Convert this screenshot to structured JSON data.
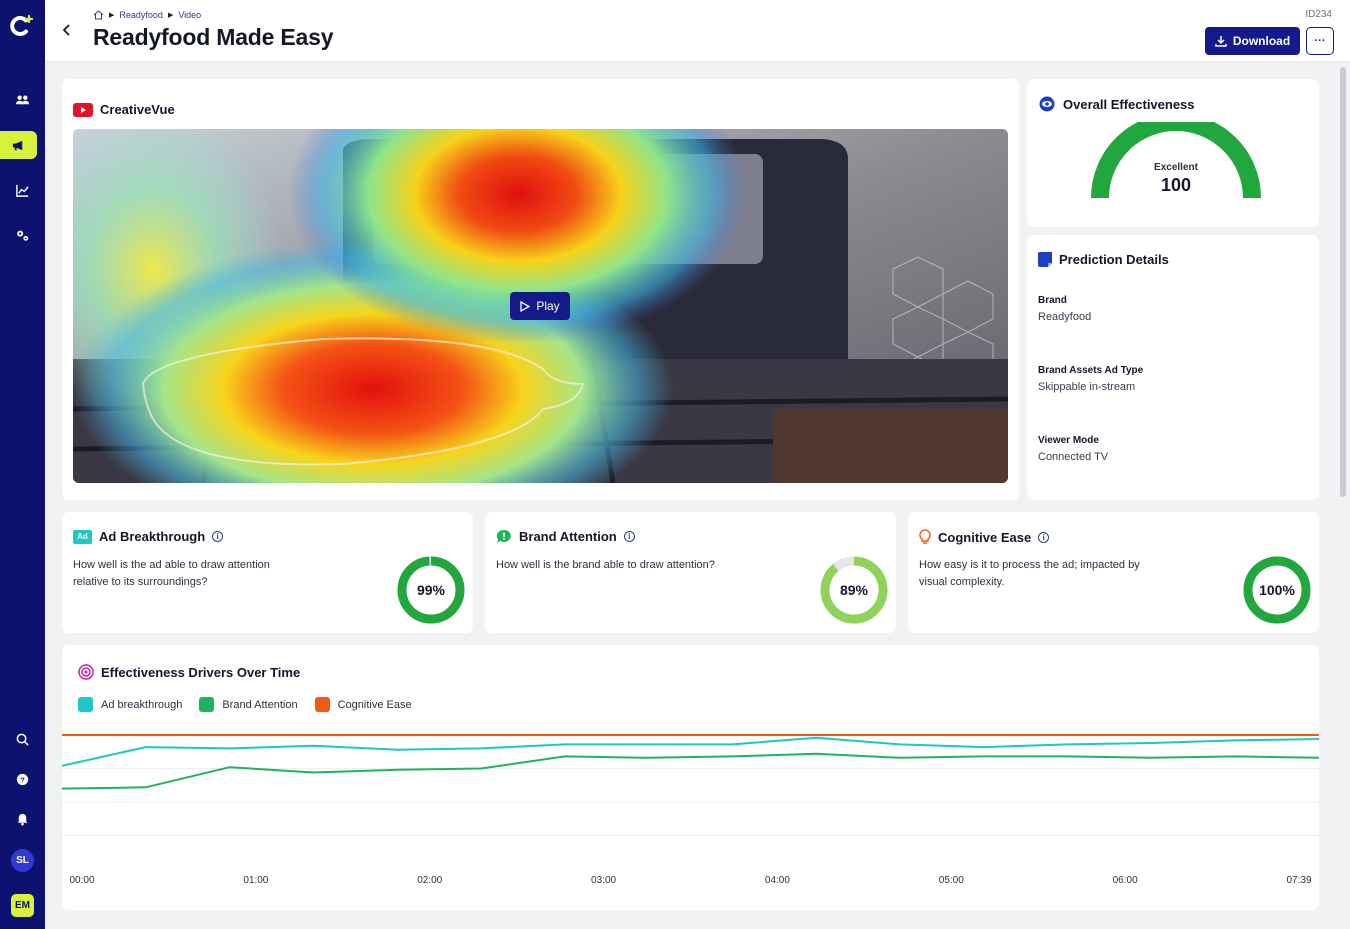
{
  "app": {
    "logo_icon": "brand-c-plus-logo"
  },
  "sidebar": {
    "items": [
      {
        "name": "audience",
        "icon": "users-icon"
      },
      {
        "name": "campaigns",
        "icon": "megaphone-icon",
        "active": true
      },
      {
        "name": "analytics",
        "icon": "line-chart-icon"
      },
      {
        "name": "settings",
        "icon": "gears-icon"
      }
    ],
    "bottom": [
      {
        "name": "search",
        "icon": "search-icon"
      },
      {
        "name": "help",
        "icon": "help-icon"
      },
      {
        "name": "notifications",
        "icon": "bell-icon"
      }
    ],
    "avatar_user": "SL",
    "avatar_workspace": "EM"
  },
  "header": {
    "breadcrumb": [
      "Readyfood",
      "Video"
    ],
    "title": "Readyfood Made Easy",
    "id": "ID234",
    "download_label": "Download",
    "more_label": "···"
  },
  "creative": {
    "title": "CreativeVue",
    "play_label": "Play"
  },
  "overall": {
    "title": "Overall Effectiveness",
    "rating": "Excellent",
    "score": "100",
    "fraction": 1.0,
    "color": "#22a73f"
  },
  "prediction": {
    "title": "Prediction Details",
    "fields": [
      {
        "label": "Brand",
        "value": "Readyfood"
      },
      {
        "label": "Brand Assets Ad Type",
        "value": "Skippable in-stream"
      },
      {
        "label": "Viewer Mode",
        "value": "Connected TV"
      }
    ]
  },
  "metrics": [
    {
      "title": "Ad Breakthrough",
      "badge": "Ad",
      "description": "How well is the ad able to draw attention relative to its surroundings?",
      "value": "99%",
      "fraction": 0.99,
      "color": "#22a73f"
    },
    {
      "title": "Brand Attention",
      "badge": "!",
      "description": "How well is the brand able to draw attention?",
      "value": "89%",
      "fraction": 0.89,
      "color": "#8fd35a"
    },
    {
      "title": "Cognitive Ease",
      "badge": "bulb",
      "description": "How easy is it to process the ad; impacted by visual complexity.",
      "value": "100%",
      "fraction": 1.0,
      "color": "#22a73f"
    }
  ],
  "drivers": {
    "title": "Effectiveness Drivers Over Time",
    "legend": [
      {
        "name": "Ad breakthrough",
        "color": "#1fc7c7"
      },
      {
        "name": "Brand Attention",
        "color": "#1db45c"
      },
      {
        "name": "Cognitive Ease",
        "color": "#f05a12"
      }
    ]
  },
  "chart_data": {
    "type": "line",
    "x": [
      "00:00",
      "00:30",
      "01:00",
      "01:30",
      "02:00",
      "02:30",
      "03:00",
      "03:30",
      "04:00",
      "04:30",
      "05:00",
      "05:30",
      "06:00",
      "06:30",
      "07:00",
      "07:39"
    ],
    "x_tick_labels": [
      "00:00",
      "01:00",
      "02:00",
      "03:00",
      "04:00",
      "05:00",
      "06:00",
      "07:39"
    ],
    "series": [
      {
        "name": "Ad breakthrough",
        "values": [
          77,
          91,
          90,
          92,
          89,
          90,
          93,
          93,
          93,
          98,
          93,
          91,
          93,
          94,
          96,
          97
        ]
      },
      {
        "name": "Brand Attention",
        "values": [
          60,
          61,
          76,
          72,
          74,
          75,
          84,
          83,
          84,
          86,
          83,
          84,
          84,
          83,
          84,
          83
        ]
      },
      {
        "name": "Cognitive Ease",
        "values": [
          100,
          100,
          100,
          100,
          100,
          100,
          100,
          100,
          100,
          100,
          100,
          100,
          100,
          100,
          100,
          100
        ]
      }
    ],
    "ylim": [
      0,
      100
    ],
    "grid": true
  }
}
